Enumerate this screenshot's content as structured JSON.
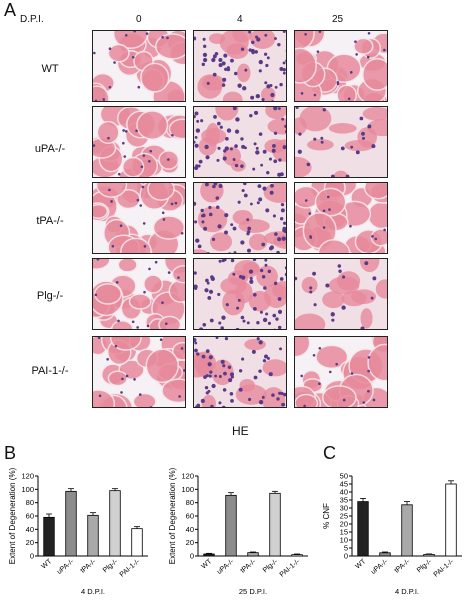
{
  "panel_a": {
    "letter": "A",
    "dpi_label": "D.P.I.",
    "columns": [
      "0",
      "4",
      "25"
    ],
    "rows": [
      "WT",
      "uPA-/-",
      "tPA-/-",
      "Plg-/-",
      "PAI-1-/-"
    ],
    "stain_label": "HE"
  },
  "panel_b": {
    "letter": "B"
  },
  "panel_c": {
    "letter": "C"
  },
  "colors": {
    "bar_fills": [
      "#222222",
      "#8c8c8c",
      "#a9a9a9",
      "#d0d0d0",
      "#ffffff"
    ],
    "tissue_pink": "#e78a9c",
    "nuclei_purple": "#5a3a86"
  },
  "chart_data": [
    {
      "type": "bar",
      "ylabel": "Extent of Degeneration (%)",
      "xlabel": "4 D.P.I.",
      "categories": [
        "WT",
        "uPA-/-",
        "tPA-/-",
        "Plg-/-",
        "PAI-1-/-"
      ],
      "values": [
        58,
        97,
        61,
        98,
        41
      ],
      "errors": [
        5,
        4,
        4,
        3,
        3
      ],
      "ylim": [
        0,
        120
      ],
      "yticks": [
        0,
        20,
        40,
        60,
        80,
        100,
        120
      ]
    },
    {
      "type": "bar",
      "ylabel": "Extent of Degeneration (%)",
      "xlabel": "25 D.P.I.",
      "categories": [
        "WT",
        "uPA-/-",
        "tPA-/-",
        "Plg-/-",
        "PAI-1-/-"
      ],
      "values": [
        3,
        91,
        5,
        94,
        2
      ],
      "errors": [
        1,
        4,
        1,
        3,
        1
      ],
      "ylim": [
        0,
        120
      ],
      "yticks": [
        0,
        20,
        40,
        60,
        80,
        100,
        120
      ]
    },
    {
      "type": "bar",
      "ylabel": "% CNF",
      "xlabel": "4 D.P.I.",
      "categories": [
        "WT",
        "uPA-/-",
        "tPA-/-",
        "Plg-/-",
        "PAI-1-/-"
      ],
      "values": [
        34,
        2,
        32,
        1,
        45
      ],
      "errors": [
        2,
        0.5,
        2,
        0.3,
        2
      ],
      "ylim": [
        0,
        50
      ],
      "yticks": [
        0,
        5,
        10,
        15,
        20,
        25,
        30,
        35,
        40,
        45,
        50
      ]
    }
  ]
}
